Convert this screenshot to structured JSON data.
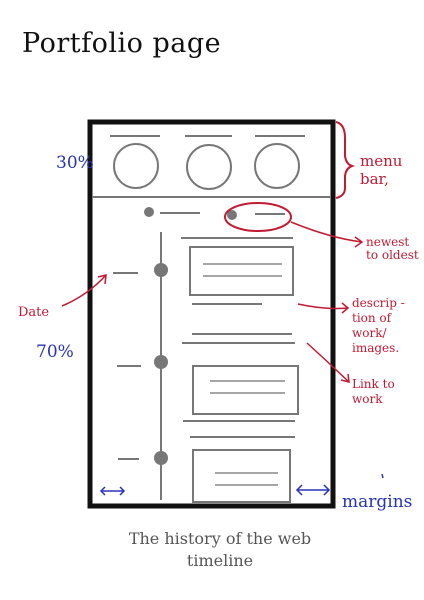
{
  "title": "Portfolio page",
  "annotations": {
    "menu_pct": "30%",
    "menu_bar": "menu bar,",
    "newest": "newest to oldest",
    "date": "Date",
    "timeline_pct": "70%",
    "description": "descrip -tion of work/ images.",
    "link": "Link to work",
    "margins": "margins"
  },
  "caption": {
    "line1": "The history of the web",
    "line2": "timeline"
  },
  "colors": {
    "ink": "#111111",
    "sketch": "#6e6e6e",
    "blue": "#2633b8",
    "red": "#c21a33"
  }
}
